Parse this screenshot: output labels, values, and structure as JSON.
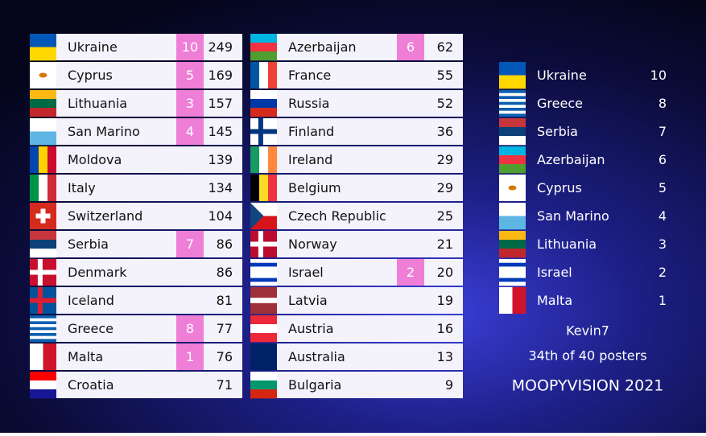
{
  "scoreboard": {
    "columns": [
      {
        "rows": [
          {
            "country": "Ukraine",
            "points": 10,
            "total": 249
          },
          {
            "country": "Cyprus",
            "points": 5,
            "total": 169
          },
          {
            "country": "Lithuania",
            "points": 3,
            "total": 157
          },
          {
            "country": "San Marino",
            "points": 4,
            "total": 145
          },
          {
            "country": "Moldova",
            "total": 139
          },
          {
            "country": "Italy",
            "total": 134
          },
          {
            "country": "Switzerland",
            "total": 104
          },
          {
            "country": "Serbia",
            "points": 7,
            "total": 86
          },
          {
            "country": "Denmark",
            "total": 86
          },
          {
            "country": "Iceland",
            "total": 81
          },
          {
            "country": "Greece",
            "points": 8,
            "total": 77
          },
          {
            "country": "Malta",
            "points": 1,
            "total": 76
          },
          {
            "country": "Croatia",
            "total": 71
          }
        ]
      },
      {
        "rows": [
          {
            "country": "Azerbaijan",
            "points": 6,
            "total": 62
          },
          {
            "country": "France",
            "total": 55
          },
          {
            "country": "Russia",
            "total": 52
          },
          {
            "country": "Finland",
            "total": 36
          },
          {
            "country": "Ireland",
            "total": 29
          },
          {
            "country": "Belgium",
            "total": 29
          },
          {
            "country": "Czech Republic",
            "total": 25
          },
          {
            "country": "Norway",
            "total": 21
          },
          {
            "country": "Israel",
            "points": 2,
            "total": 20
          },
          {
            "country": "Latvia",
            "total": 19
          },
          {
            "country": "Austria",
            "total": 16
          },
          {
            "country": "Australia",
            "total": 13
          },
          {
            "country": "Bulgaria",
            "total": 9
          }
        ]
      }
    ]
  },
  "votes": {
    "rows": [
      {
        "country": "Ukraine",
        "points": 10
      },
      {
        "country": "Greece",
        "points": 8
      },
      {
        "country": "Serbia",
        "points": 7
      },
      {
        "country": "Azerbaijan",
        "points": 6
      },
      {
        "country": "Cyprus",
        "points": 5
      },
      {
        "country": "San Marino",
        "points": 4
      },
      {
        "country": "Lithuania",
        "points": 3
      },
      {
        "country": "Israel",
        "points": 2
      },
      {
        "country": "Malta",
        "points": 1
      }
    ],
    "voter": "Kevin7",
    "rank": "34th of 40 posters",
    "show": "MOOPYVISION 2021"
  }
}
